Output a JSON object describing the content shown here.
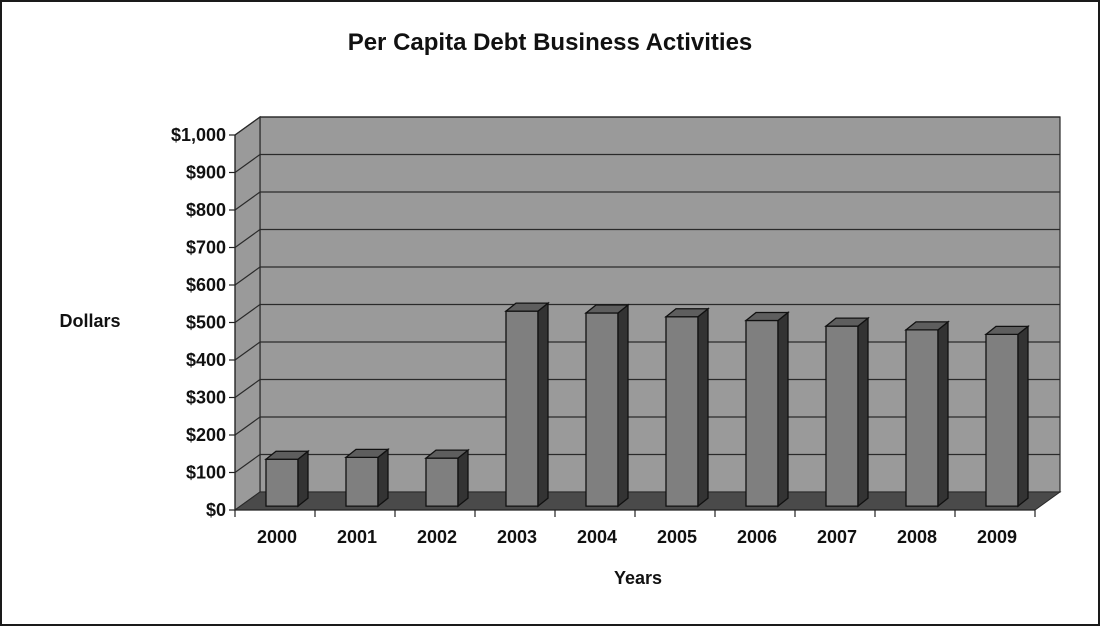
{
  "chart_data": {
    "type": "bar",
    "title": "Per Capita Debt Business Activities",
    "xlabel": "Years",
    "ylabel": "Dollars",
    "categories": [
      "2000",
      "2001",
      "2002",
      "2003",
      "2004",
      "2005",
      "2006",
      "2007",
      "2008",
      "2009"
    ],
    "values": [
      125,
      130,
      128,
      520,
      515,
      505,
      495,
      480,
      470,
      458
    ],
    "ylim": [
      0,
      1000
    ],
    "y_ticks": [
      0,
      100,
      200,
      300,
      400,
      500,
      600,
      700,
      800,
      900,
      1000
    ],
    "y_tick_labels": [
      "$0",
      "$100",
      "$200",
      "$300",
      "$400",
      "$500",
      "$600",
      "$700",
      "$800",
      "$900",
      "$1,000"
    ],
    "grid": true,
    "style": "3d-column",
    "colors": {
      "wall": "#9a9a9a",
      "floor": "#4a4a4a",
      "bar_front": "#7f7f7f",
      "bar_side": "#333333",
      "bar_top": "#5e5e5e",
      "gridline": "#2a2a2a"
    }
  }
}
